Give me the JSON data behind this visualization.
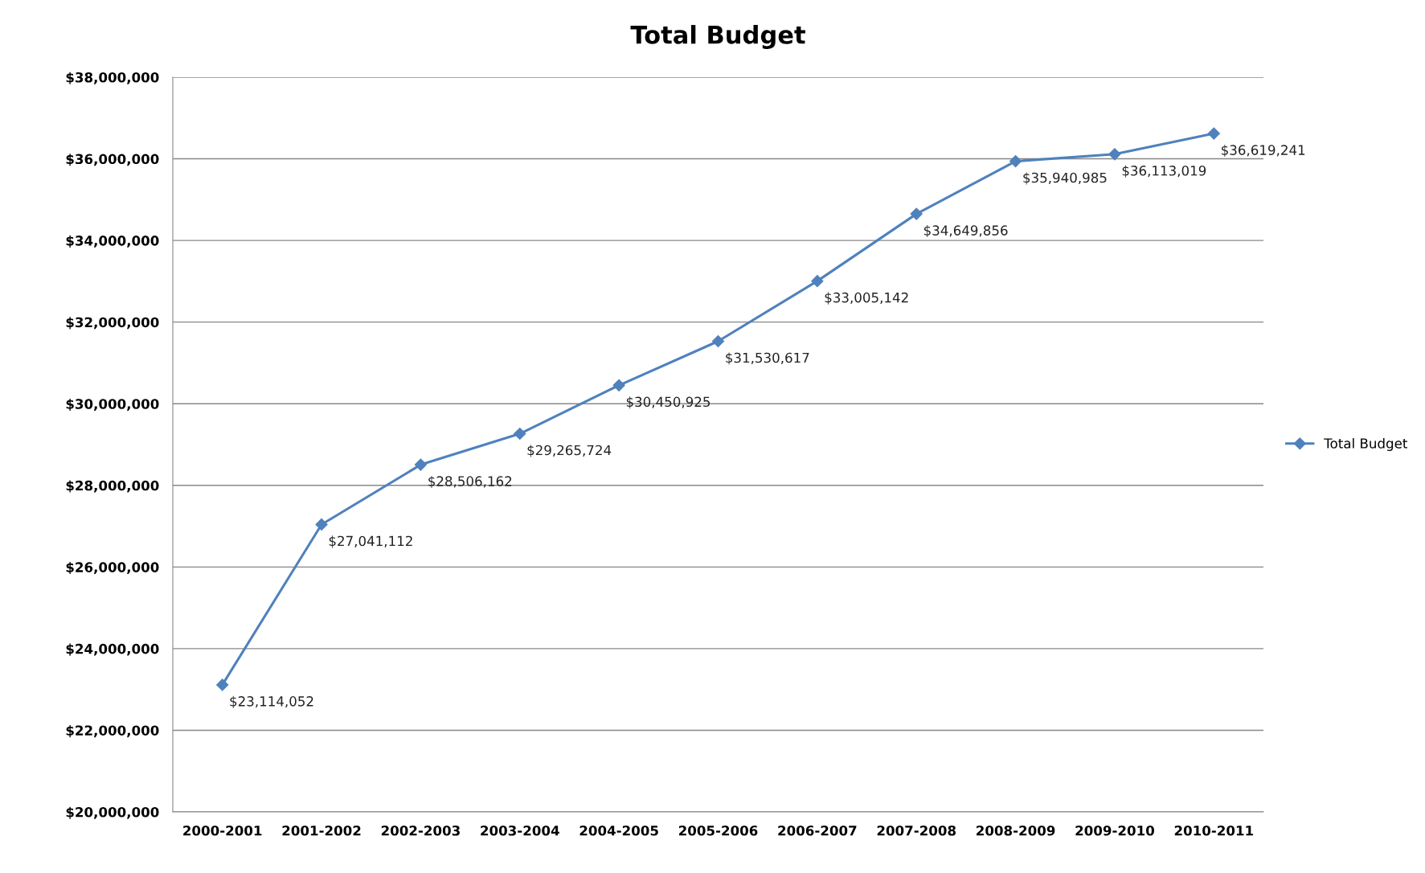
{
  "chart_data": {
    "type": "line",
    "title": "Total Budget",
    "categories": [
      "2000-2001",
      "2001-2002",
      "2002-2003",
      "2003-2004",
      "2004-2005",
      "2005-2006",
      "2006-2007",
      "2007-2008",
      "2008-2009",
      "2009-2010",
      "2010-2011"
    ],
    "series": [
      {
        "name": "Total Budget",
        "color": "#4f81bd",
        "values": [
          23114052,
          27041112,
          28506162,
          29265724,
          30450925,
          31530617,
          33005142,
          34649856,
          35940985,
          36113019,
          36619241
        ],
        "value_labels": [
          "$23,114,052",
          "$27,041,112",
          "$28,506,162",
          "$29,265,724",
          "$30,450,925",
          "$31,530,617",
          "$33,005,142",
          "$34,649,856",
          "$35,940,985",
          "$36,113,019",
          "$36,619,241"
        ]
      }
    ],
    "ylim": [
      20000000,
      38000000
    ],
    "yticks": [
      {
        "value": 20000000,
        "label": "$20,000,000"
      },
      {
        "value": 22000000,
        "label": "$22,000,000"
      },
      {
        "value": 24000000,
        "label": "$24,000,000"
      },
      {
        "value": 26000000,
        "label": "$26,000,000"
      },
      {
        "value": 28000000,
        "label": "$28,000,000"
      },
      {
        "value": 30000000,
        "label": "$30,000,000"
      },
      {
        "value": 32000000,
        "label": "$32,000,000"
      },
      {
        "value": 34000000,
        "label": "$34,000,000"
      },
      {
        "value": 36000000,
        "label": "$36,000,000"
      },
      {
        "value": 38000000,
        "label": "$38,000,000"
      }
    ],
    "grid": "y",
    "legend": "right",
    "marker": "diamond",
    "line_style": "solid"
  }
}
